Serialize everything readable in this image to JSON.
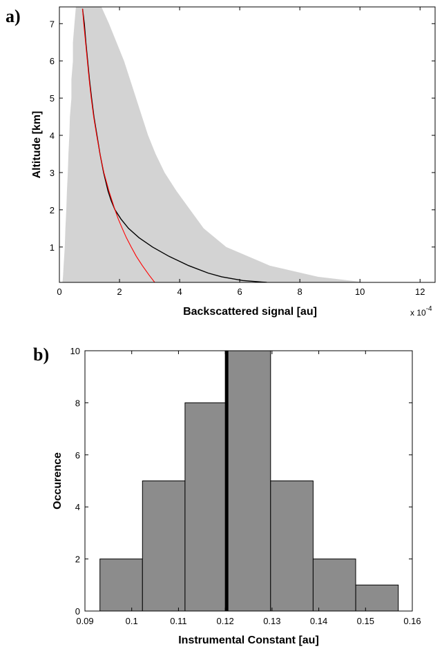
{
  "chart_data": [
    {
      "panel_label": "a)",
      "type": "line",
      "xlabel": "Backscattered signal [au]",
      "ylabel": "Altitude [km]",
      "x_exponent": "x 10",
      "x_exponent_power": "-4",
      "xlim": [
        0,
        12.5
      ],
      "ylim": [
        0.05,
        7.45
      ],
      "xticks": [
        "0",
        "2",
        "4",
        "6",
        "8",
        "10",
        "12"
      ],
      "yticks": [
        "1",
        "2",
        "3",
        "4",
        "5",
        "6",
        "7"
      ],
      "colors": {
        "band": "#d3d3d3",
        "measured": "#000000",
        "model": "#ff0000"
      },
      "uncertainty_band": {
        "y": [
          0.05,
          0.2,
          0.5,
          1,
          1.5,
          2,
          2.5,
          3,
          3.5,
          4,
          4.5,
          5,
          5.5,
          6,
          6.5,
          7,
          7.45
        ],
        "low": [
          0.1,
          0.12,
          0.14,
          0.18,
          0.2,
          0.23,
          0.25,
          0.28,
          0.3,
          0.33,
          0.35,
          0.4,
          0.4,
          0.45,
          0.45,
          0.5,
          0.55
        ],
        "high": [
          10.2,
          8.6,
          7.0,
          5.55,
          4.8,
          4.35,
          3.9,
          3.5,
          3.2,
          2.95,
          2.75,
          2.55,
          2.35,
          2.15,
          1.9,
          1.65,
          1.4
        ]
      },
      "series": [
        {
          "role": "measured",
          "y": [
            0.05,
            0.1,
            0.2,
            0.3,
            0.5,
            0.75,
            1.0,
            1.25,
            1.5,
            1.75,
            2.0,
            2.25,
            2.5,
            3.0,
            3.5,
            4.0,
            4.5,
            5.0,
            5.5,
            6.0,
            6.5,
            7.0,
            7.4
          ],
          "x": [
            6.9,
            6.1,
            5.4,
            4.95,
            4.3,
            3.65,
            3.1,
            2.65,
            2.3,
            2.05,
            1.85,
            1.72,
            1.62,
            1.47,
            1.35,
            1.25,
            1.15,
            1.07,
            1.0,
            0.94,
            0.88,
            0.83,
            0.77
          ]
        },
        {
          "role": "model",
          "y": [
            0.05,
            0.25,
            0.5,
            0.75,
            1.0,
            1.25,
            1.5,
            1.75,
            2.0,
            2.5,
            3.0,
            3.5,
            4.0,
            4.5,
            5.0,
            5.5,
            6.0,
            6.5,
            7.0,
            7.4
          ],
          "x": [
            3.17,
            2.98,
            2.76,
            2.56,
            2.39,
            2.23,
            2.09,
            1.96,
            1.85,
            1.65,
            1.48,
            1.35,
            1.24,
            1.14,
            1.06,
            0.99,
            0.93,
            0.87,
            0.81,
            0.77
          ]
        }
      ]
    },
    {
      "panel_label": "b)",
      "type": "bar",
      "xlabel": "Instrumental Constant [au]",
      "ylabel": "Occurence",
      "xlim": [
        0.09,
        0.16
      ],
      "ylim": [
        0,
        10
      ],
      "xticks": [
        "0.09",
        "0.1",
        "0.11",
        "0.12",
        "0.13",
        "0.14",
        "0.15",
        "0.16"
      ],
      "yticks": [
        "0",
        "2",
        "4",
        "6",
        "8",
        "10"
      ],
      "colors": {
        "bar": "#8c8c8c",
        "mean_line": "#000000"
      },
      "bins": [
        {
          "start": 0.0932,
          "end": 0.1023,
          "count": 2
        },
        {
          "start": 0.1023,
          "end": 0.1114,
          "count": 5
        },
        {
          "start": 0.1114,
          "end": 0.1205,
          "count": 8
        },
        {
          "start": 0.1205,
          "end": 0.1297,
          "count": 10
        },
        {
          "start": 0.1297,
          "end": 0.1388,
          "count": 5
        },
        {
          "start": 0.1388,
          "end": 0.1479,
          "count": 2
        },
        {
          "start": 0.1479,
          "end": 0.157,
          "count": 1
        }
      ],
      "mean_value": 0.1203
    }
  ]
}
